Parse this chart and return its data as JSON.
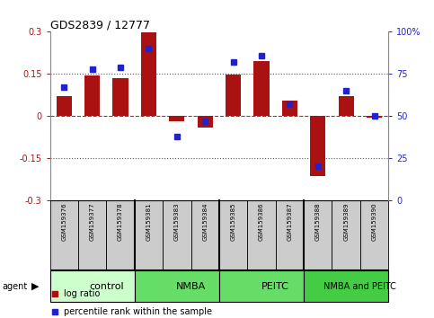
{
  "title": "GDS2839 / 12777",
  "samples": [
    "GSM159376",
    "GSM159377",
    "GSM159378",
    "GSM159381",
    "GSM159383",
    "GSM159384",
    "GSM159385",
    "GSM159386",
    "GSM159387",
    "GSM159388",
    "GSM159389",
    "GSM159390"
  ],
  "log_ratio": [
    0.07,
    0.145,
    0.135,
    0.298,
    -0.02,
    -0.04,
    0.147,
    0.195,
    0.055,
    -0.215,
    0.07,
    -0.005
  ],
  "percentile_rank": [
    67,
    78,
    79,
    90,
    38,
    47,
    82,
    86,
    57,
    20,
    65,
    50
  ],
  "groups": [
    {
      "label": "control",
      "start": 0,
      "end": 3,
      "color": "#ccffcc"
    },
    {
      "label": "NMBA",
      "start": 3,
      "end": 6,
      "color": "#66dd66"
    },
    {
      "label": "PEITC",
      "start": 6,
      "end": 9,
      "color": "#66dd66"
    },
    {
      "label": "NMBA and PEITC",
      "start": 9,
      "end": 12,
      "color": "#44cc44"
    }
  ],
  "bar_color": "#aa1111",
  "dot_color": "#2222cc",
  "ref_line_color": "#cc2222",
  "dotted_line_color": "#555555",
  "sample_box_color": "#cccccc",
  "ylim": [
    -0.3,
    0.3
  ],
  "y2lim": [
    0,
    100
  ],
  "yticks": [
    -0.3,
    -0.15,
    0.0,
    0.15,
    0.3
  ],
  "y2ticks": [
    0,
    25,
    50,
    75,
    100
  ],
  "ytick_labels": [
    "-0.3",
    "-0.15",
    "0",
    "0.15",
    "0.3"
  ],
  "y2tick_labels": [
    "0",
    "25",
    "50",
    "75",
    "100%"
  ],
  "dotted_lines": [
    0.15,
    -0.15
  ],
  "bg_color": "#ffffff"
}
